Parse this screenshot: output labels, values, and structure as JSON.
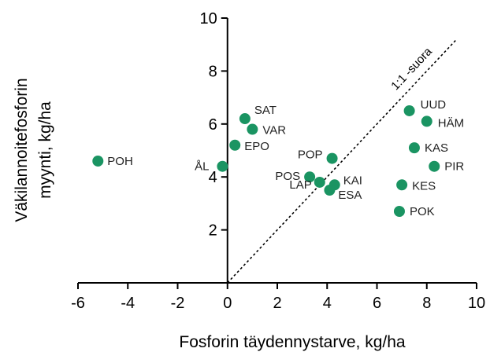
{
  "chart_data": {
    "type": "scatter",
    "xlabel": "Fosforin täydennystarve, kg/ha",
    "ylabel_line1": "Väkilannoitefosforin",
    "ylabel_line2": "myynti, kg/ha",
    "xlim": [
      -6,
      10
    ],
    "ylim": [
      0,
      10
    ],
    "xticks": [
      -6,
      -4,
      -2,
      0,
      2,
      4,
      6,
      8,
      10
    ],
    "yticks": [
      2,
      4,
      6,
      8,
      10
    ],
    "grid": false,
    "point_color": "#1a9462",
    "reference_line": {
      "label": "1:1 -suora",
      "from": [
        0,
        0
      ],
      "to": [
        9.2,
        9.2
      ]
    },
    "points": [
      {
        "label": "POH",
        "x": -5.2,
        "y": 4.6
      },
      {
        "label": "ÅL",
        "x": -0.2,
        "y": 4.4
      },
      {
        "label": "SAT",
        "x": 0.7,
        "y": 6.2
      },
      {
        "label": "VAR",
        "x": 1.0,
        "y": 5.8
      },
      {
        "label": "EPO",
        "x": 0.3,
        "y": 5.2
      },
      {
        "label": "POP",
        "x": 4.2,
        "y": 4.7
      },
      {
        "label": "POS",
        "x": 3.3,
        "y": 4.0
      },
      {
        "label": "LAP",
        "x": 3.7,
        "y": 3.8
      },
      {
        "label": "KAI",
        "x": 4.3,
        "y": 3.7
      },
      {
        "label": "ESA",
        "x": 4.1,
        "y": 3.5
      },
      {
        "label": "UUD",
        "x": 7.3,
        "y": 6.5
      },
      {
        "label": "HÄM",
        "x": 8.0,
        "y": 6.1
      },
      {
        "label": "KAS",
        "x": 7.5,
        "y": 5.1
      },
      {
        "label": "PIR",
        "x": 8.3,
        "y": 4.4
      },
      {
        "label": "KES",
        "x": 7.0,
        "y": 3.7
      },
      {
        "label": "POK",
        "x": 6.9,
        "y": 2.7
      }
    ]
  }
}
